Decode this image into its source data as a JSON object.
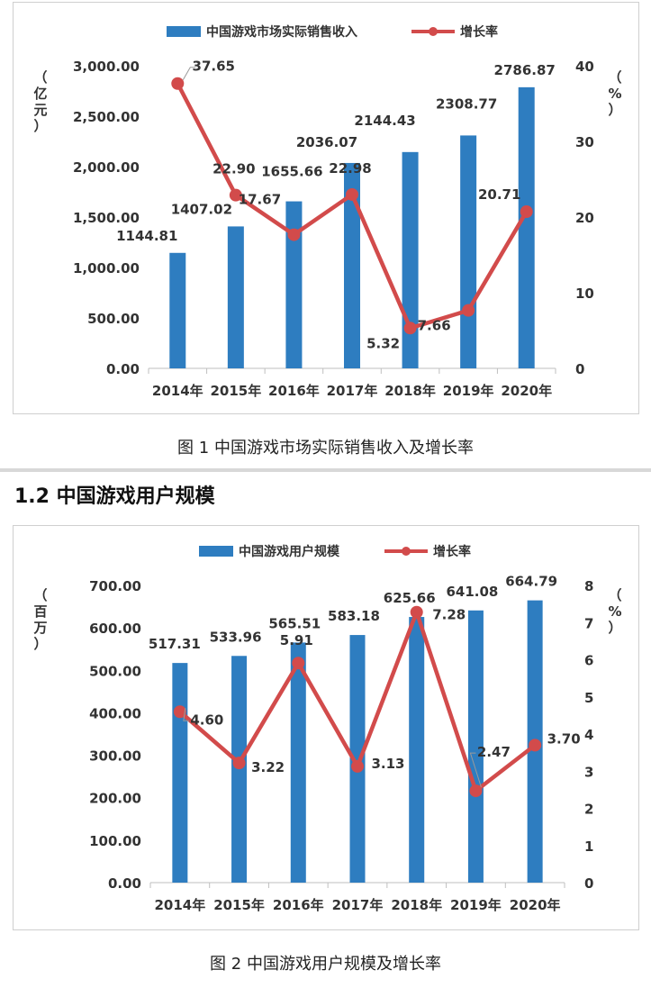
{
  "chart_data": [
    {
      "type": "bar+line",
      "categories": [
        "2014年",
        "2015年",
        "2016年",
        "2017年",
        "2018年",
        "2019年",
        "2020年"
      ],
      "series": [
        {
          "name": "中国游戏市场实际销售收入",
          "kind": "bar",
          "axis": "left",
          "values": [
            1144.81,
            1407.02,
            1655.66,
            2036.07,
            2144.43,
            2308.77,
            2786.87
          ],
          "labels": [
            "1144.81",
            "1407.02",
            "1655.66",
            "2036.07",
            "2144.43",
            "2308.77",
            "2786.87"
          ]
        },
        {
          "name": "增长率",
          "kind": "line",
          "axis": "right",
          "values": [
            37.65,
            22.9,
            17.67,
            22.98,
            5.32,
            7.66,
            20.71
          ],
          "labels": [
            "37.65",
            "22.90",
            "17.67",
            "22.98",
            "5.32",
            "7.66",
            "20.71"
          ]
        }
      ],
      "left_axis": {
        "label": "（亿元）",
        "ylim": [
          0,
          3000
        ],
        "ticks": [
          "0.00",
          "500.00",
          "1,000.00",
          "1,500.00",
          "2,000.00",
          "2,500.00",
          "3,000.00"
        ]
      },
      "right_axis": {
        "label": "（%）",
        "ylim": [
          0,
          40
        ],
        "ticks": [
          "0",
          "10",
          "20",
          "30",
          "40"
        ]
      },
      "legend": "top",
      "caption": "图 1  中国游戏市场实际销售收入及增长率"
    },
    {
      "type": "bar+line",
      "categories": [
        "2014年",
        "2015年",
        "2016年",
        "2017年",
        "2018年",
        "2019年",
        "2020年"
      ],
      "series": [
        {
          "name": "中国游戏用户规模",
          "kind": "bar",
          "axis": "left",
          "values": [
            517.31,
            533.96,
            565.51,
            583.18,
            625.66,
            641.08,
            664.79
          ],
          "labels": [
            "517.31",
            "533.96",
            "565.51",
            "583.18",
            "625.66",
            "641.08",
            "664.79"
          ]
        },
        {
          "name": "增长率",
          "kind": "line",
          "axis": "right",
          "values": [
            4.6,
            3.22,
            5.91,
            3.13,
            7.28,
            2.47,
            3.7
          ],
          "labels": [
            "4.60",
            "3.22",
            "5.91",
            "3.13",
            "7.28",
            "2.47",
            "3.70"
          ]
        }
      ],
      "left_axis": {
        "label": "（百万）",
        "ylim": [
          0,
          700
        ],
        "ticks": [
          "0.00",
          "100.00",
          "200.00",
          "300.00",
          "400.00",
          "500.00",
          "600.00",
          "700.00"
        ]
      },
      "right_axis": {
        "label": "（%）",
        "ylim": [
          0,
          8
        ],
        "ticks": [
          "0",
          "1",
          "2",
          "3",
          "4",
          "5",
          "6",
          "7",
          "8"
        ]
      },
      "legend": "top",
      "caption": "图 2  中国游戏用户规模及增长率"
    }
  ],
  "section": {
    "title": "1.2 中国游戏用户规模"
  },
  "colors": {
    "bar": "#2E7DC0",
    "line": "#D24B4B",
    "axis": "#bfbfbf",
    "text": "#333333"
  }
}
